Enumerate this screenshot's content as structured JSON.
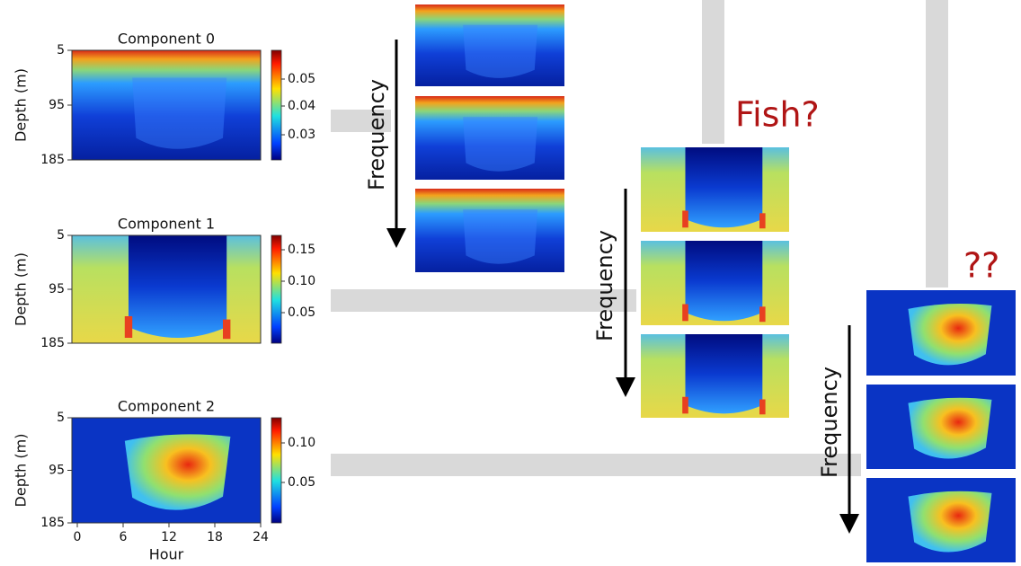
{
  "components": [
    {
      "title": "Component 0",
      "colorbar_ticks": [
        "0.05",
        "0.04",
        "0.03"
      ]
    },
    {
      "title": "Component 1",
      "colorbar_ticks": [
        "0.15",
        "0.10",
        "0.05"
      ]
    },
    {
      "title": "Component 2",
      "colorbar_ticks": [
        "0.10",
        "0.05"
      ]
    }
  ],
  "y_axis": {
    "label": "Depth (m)",
    "ticks": [
      "5",
      "95",
      "185"
    ]
  },
  "x_axis": {
    "label": "Hour",
    "ticks": [
      "0",
      "6",
      "12",
      "18",
      "24"
    ]
  },
  "frequency_labels": [
    "Frequency",
    "Frequency",
    "Frequency"
  ],
  "annotations": {
    "fish": "Fish?",
    "unknown": "??"
  }
}
